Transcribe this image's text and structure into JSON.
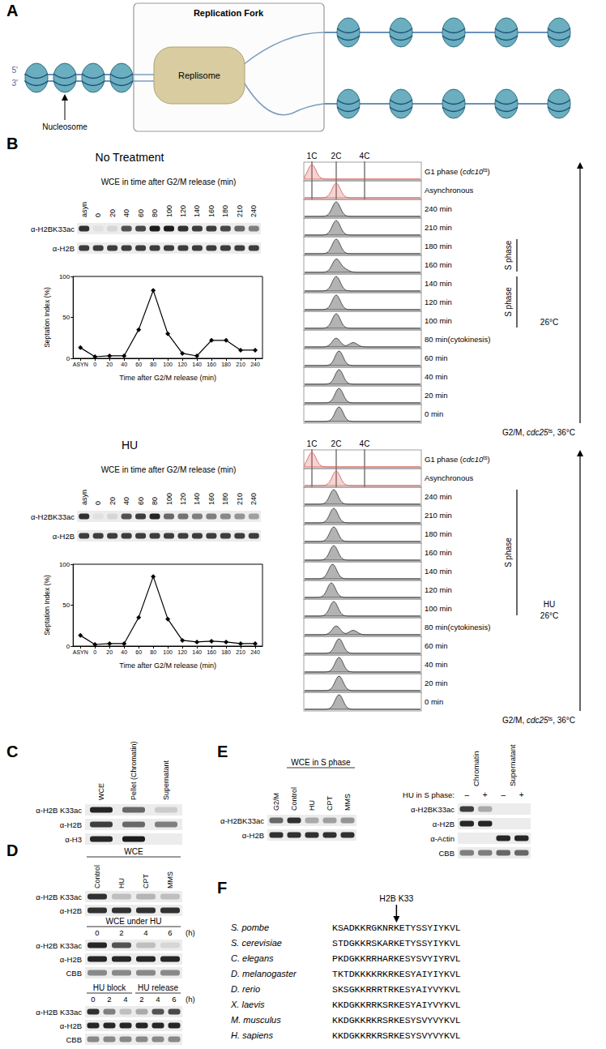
{
  "chart_data": [
    {
      "type": "line",
      "x_label": "Time after G2/M release (min)",
      "y_label": "Septation Index (%)",
      "categories": [
        "ASYN",
        "0",
        "20",
        "40",
        "60",
        "80",
        "100",
        "120",
        "140",
        "160",
        "180",
        "210",
        "240"
      ],
      "values": [
        13,
        2,
        3,
        3,
        35,
        83,
        30,
        6,
        3,
        22,
        22,
        10,
        10
      ],
      "ylim": [
        0,
        100
      ],
      "yticks": [
        0,
        50,
        100
      ],
      "color": "#000000",
      "marker": "diamond",
      "grid": false
    },
    {
      "type": "line",
      "x_label": "Time after G2/M release (min)",
      "y_label": "Septation Index (%)",
      "categories": [
        "ASYN",
        "0",
        "20",
        "40",
        "60",
        "80",
        "100",
        "120",
        "140",
        "160",
        "180",
        "210",
        "240"
      ],
      "values": [
        13,
        2,
        3,
        3,
        35,
        85,
        33,
        7,
        5,
        6,
        5,
        3,
        3
      ],
      "ylim": [
        0,
        100
      ],
      "yticks": [
        0,
        50,
        100
      ],
      "color": "#000000",
      "marker": "diamond",
      "grid": false
    }
  ],
  "figure": {
    "A": {
      "label": "A",
      "box_title": "Replication Fork",
      "machine": "Replisome",
      "end_labels": [
        "5'",
        "3'"
      ],
      "pointer": "Nucleosome"
    },
    "B": {
      "label": "B",
      "sections": [
        {
          "title": "No Treatment",
          "blot_title": "WCE in time after G2/M release (min)",
          "lanes": [
            "asyn",
            "0",
            "20",
            "40",
            "60",
            "80",
            "100",
            "120",
            "140",
            "160",
            "180",
            "210",
            "240"
          ],
          "rows": [
            {
              "name": "α-H2BK33ac",
              "intensity": [
                0.85,
                0.05,
                0.1,
                0.7,
                0.75,
                0.95,
                0.95,
                0.85,
                0.8,
                0.8,
                0.75,
                0.6,
                0.5
              ]
            },
            {
              "name": "α-H2B",
              "intensity": [
                0.8,
                0.8,
                0.8,
                0.8,
                0.8,
                0.8,
                0.8,
                0.8,
                0.8,
                0.8,
                0.8,
                0.8,
                0.8
              ]
            }
          ],
          "flow_header": [
            {
              "value": 1,
              "label": "1C"
            },
            {
              "value": 2,
              "label": "2C"
            },
            {
              "value": 4,
              "label": "4C"
            }
          ],
          "flow_rows": [
            {
              "label": [
                "G1 phase (",
                {
                  "i": "cdc10"
                },
                {
                  "sup": "ts"
                },
                ")"
              ],
              "color": "#d9534f",
              "peaks": [
                [
                  1,
                  1
                ]
              ]
            },
            {
              "label": [
                "Asynchronous"
              ],
              "color": "#d9534f",
              "peaks": [
                [
                  2,
                  1
                ]
              ]
            },
            {
              "label": [
                "240 min"
              ],
              "color": "#9a9a9a",
              "peaks": [
                [
                  2,
                  1
                ]
              ]
            },
            {
              "label": [
                "210 min"
              ],
              "color": "#9a9a9a",
              "peaks": [
                [
                  2,
                  1
                ]
              ]
            },
            {
              "label": [
                "180 min"
              ],
              "color": "#9a9a9a",
              "peaks": [
                [
                  2,
                  1
                ]
              ]
            },
            {
              "label": [
                "160 min"
              ],
              "color": "#9a9a9a",
              "peaks": [
                [
                  2,
                  0.9
                ],
                [
                  2.6,
                  0.2
                ]
              ]
            },
            {
              "label": [
                "140 min"
              ],
              "color": "#9a9a9a",
              "peaks": [
                [
                  2,
                  1
                ]
              ]
            },
            {
              "label": [
                "120 min"
              ],
              "color": "#9a9a9a",
              "peaks": [
                [
                  2,
                  1
                ]
              ]
            },
            {
              "label": [
                "100 min"
              ],
              "color": "#9a9a9a",
              "peaks": [
                [
                  2,
                  1
                ]
              ]
            },
            {
              "label": [
                "80 min(cytokinesis)"
              ],
              "color": "#9a9a9a",
              "peaks": [
                [
                  2,
                  0.6
                ],
                [
                  3.2,
                  0.3
                ]
              ]
            },
            {
              "label": [
                "60 min"
              ],
              "color": "#9a9a9a",
              "peaks": [
                [
                  2.2,
                  1
                ]
              ]
            },
            {
              "label": [
                "40 min"
              ],
              "color": "#9a9a9a",
              "peaks": [
                [
                  2.2,
                  1
                ]
              ]
            },
            {
              "label": [
                "20 min"
              ],
              "color": "#9a9a9a",
              "peaks": [
                [
                  2.2,
                  1
                ]
              ]
            },
            {
              "label": [
                "0 min"
              ],
              "color": "#9a9a9a",
              "peaks": [
                [
                  2.2,
                  1
                ]
              ]
            }
          ],
          "s_phase": [
            {
              "text": "S phase",
              "rows": [
                4,
                5
              ]
            },
            {
              "text": "S phase",
              "rows": [
                6,
                8
              ]
            }
          ],
          "conditions": [
            "26°C"
          ],
          "start": [
            "G2/M, ",
            {
              "i": "cdc25"
            },
            {
              "sup": "ts"
            },
            ", 36°C"
          ]
        },
        {
          "title": "HU",
          "blot_title": "WCE in time after G2/M release (min)",
          "lanes": [
            "asyn",
            "0",
            "20",
            "40",
            "60",
            "80",
            "100",
            "120",
            "140",
            "160",
            "180",
            "210",
            "240"
          ],
          "rows": [
            {
              "name": "α-H2BK33ac",
              "intensity": [
                0.85,
                0.05,
                0.1,
                0.7,
                0.8,
                0.9,
                0.6,
                0.55,
                0.5,
                0.5,
                0.45,
                0.4,
                0.35
              ]
            },
            {
              "name": "α-H2B",
              "intensity": [
                0.8,
                0.8,
                0.8,
                0.8,
                0.8,
                0.8,
                0.8,
                0.8,
                0.8,
                0.8,
                0.8,
                0.8,
                0.8
              ]
            }
          ],
          "flow_header": [
            {
              "value": 1,
              "label": "1C"
            },
            {
              "value": 2,
              "label": "2C"
            },
            {
              "value": 4,
              "label": "4C"
            }
          ],
          "flow_rows": [
            {
              "label": [
                "G1 phase (",
                {
                  "i": "cdc10"
                },
                {
                  "sup": "ts"
                },
                ")"
              ],
              "color": "#d9534f",
              "peaks": [
                [
                  1,
                  1
                ]
              ]
            },
            {
              "label": [
                "Asynchronous"
              ],
              "color": "#d9534f",
              "peaks": [
                [
                  2,
                  1
                ]
              ]
            },
            {
              "label": [
                "240 min"
              ],
              "color": "#9a9a9a",
              "peaks": [
                [
                  1.9,
                  1
                ]
              ]
            },
            {
              "label": [
                "210 min"
              ],
              "color": "#9a9a9a",
              "peaks": [
                [
                  1.9,
                  1
                ]
              ]
            },
            {
              "label": [
                "180 min"
              ],
              "color": "#9a9a9a",
              "peaks": [
                [
                  1.9,
                  1
                ]
              ]
            },
            {
              "label": [
                "160 min"
              ],
              "color": "#9a9a9a",
              "peaks": [
                [
                  1.9,
                  1
                ]
              ]
            },
            {
              "label": [
                "140 min"
              ],
              "color": "#9a9a9a",
              "peaks": [
                [
                  1.85,
                  1
                ]
              ]
            },
            {
              "label": [
                "120 min"
              ],
              "color": "#9a9a9a",
              "peaks": [
                [
                  1.8,
                  1
                ]
              ]
            },
            {
              "label": [
                "100 min"
              ],
              "color": "#9a9a9a",
              "peaks": [
                [
                  1.9,
                  1
                ]
              ]
            },
            {
              "label": [
                "80 min(cytokinesis)"
              ],
              "color": "#9a9a9a",
              "peaks": [
                [
                  2,
                  0.6
                ],
                [
                  3.2,
                  0.3
                ]
              ]
            },
            {
              "label": [
                "60 min"
              ],
              "color": "#9a9a9a",
              "peaks": [
                [
                  2.2,
                  1
                ]
              ]
            },
            {
              "label": [
                "40 min"
              ],
              "color": "#9a9a9a",
              "peaks": [
                [
                  2.2,
                  1
                ]
              ]
            },
            {
              "label": [
                "20 min"
              ],
              "color": "#9a9a9a",
              "peaks": [
                [
                  2.2,
                  1
                ]
              ]
            },
            {
              "label": [
                "0 min"
              ],
              "color": "#9a9a9a",
              "peaks": [
                [
                  2.2,
                  1
                ]
              ]
            }
          ],
          "s_phase": [
            {
              "text": "S phase",
              "rows": [
                2,
                8
              ]
            }
          ],
          "conditions": [
            "HU",
            "26°C"
          ],
          "start": [
            "G2/M, ",
            {
              "i": "cdc25"
            },
            {
              "sup": "ts"
            },
            ", 36°C"
          ]
        }
      ]
    },
    "C": {
      "label": "C",
      "columns": [
        "WCE",
        "Pellet (Chromatin)",
        "Supernatant"
      ],
      "rows": [
        {
          "name": "α-H2B K33ac",
          "intensity": [
            0.9,
            0.6,
            0.15
          ]
        },
        {
          "name": "α-H2B",
          "intensity": [
            0.8,
            0.6,
            0.5
          ]
        },
        {
          "name": "α-H3",
          "intensity": [
            0.9,
            0.95,
            0.0
          ]
        }
      ]
    },
    "D": {
      "label": "D",
      "blots": [
        {
          "header": [
            {
              "text": "WCE",
              "first": 1,
              "last": 4
            }
          ],
          "lanes": [
            "Control",
            "HU",
            "CPT",
            "MMS"
          ],
          "rows": [
            {
              "name": "α-H2B K33ac",
              "intensity": [
                0.85,
                0.2,
                0.25,
                0.2
              ]
            },
            {
              "name": "α-H2B",
              "intensity": [
                0.85,
                0.85,
                0.85,
                0.85
              ]
            }
          ]
        },
        {
          "header": [
            {
              "text": "WCE under HU",
              "first": 1,
              "last": 4
            }
          ],
          "lanes": [
            "0",
            "2",
            "4",
            "6"
          ],
          "unit": "(h)",
          "rows": [
            {
              "name": "α-H2B K33ac",
              "intensity": [
                0.9,
                0.7,
                0.2,
                0.1
              ]
            },
            {
              "name": "α-H2B",
              "intensity": [
                0.9,
                0.9,
                0.9,
                0.9
              ]
            },
            {
              "name": "CBB",
              "intensity": [
                0.45,
                0.45,
                0.45,
                0.45
              ]
            }
          ]
        },
        {
          "header": [
            {
              "text": "HU block",
              "first": 1,
              "last": 3
            },
            {
              "text": "HU release",
              "first": 4,
              "last": 6
            }
          ],
          "lanes": [
            "0",
            "2",
            "4",
            "2",
            "4",
            "6"
          ],
          "unit": "(h)",
          "rows": [
            {
              "name": "α-H2B K33ac",
              "intensity": [
                0.85,
                0.5,
                0.2,
                0.3,
                0.7,
                0.75
              ]
            },
            {
              "name": "α-H2B",
              "intensity": [
                0.9,
                0.9,
                0.9,
                0.9,
                0.9,
                0.9
              ]
            },
            {
              "name": "CBB",
              "intensity": [
                0.45,
                0.45,
                0.45,
                0.45,
                0.45,
                0.45
              ]
            }
          ]
        }
      ]
    },
    "E": {
      "label": "E",
      "left": {
        "header": [
          {
            "text": "WCE in S phase",
            "first": 2,
            "last": 5
          }
        ],
        "lanes": [
          "G2/M",
          "Control",
          "HU",
          "CPT",
          "MMS"
        ],
        "rows": [
          {
            "name": "α-H2BK33ac",
            "intensity": [
              0.6,
              0.85,
              0.3,
              0.35,
              0.4
            ]
          },
          {
            "name": "α-H2B",
            "intensity": [
              0.85,
              0.85,
              0.85,
              0.85,
              0.85
            ]
          }
        ]
      },
      "right": {
        "condition": "HU in S phase:",
        "groups": [
          {
            "text": "Chromatin",
            "first": 1,
            "last": 2
          },
          {
            "text": "Supernatant",
            "first": 3,
            "last": 4
          }
        ],
        "lanes": [
          "–",
          "+",
          "–",
          "+"
        ],
        "rows": [
          {
            "name": "α-H2BK33ac",
            "intensity": [
              0.8,
              0.3,
              0.0,
              0.0
            ]
          },
          {
            "name": "α-H2B",
            "intensity": [
              0.9,
              0.9,
              0.0,
              0.0
            ]
          },
          {
            "name": "α-Actin",
            "intensity": [
              0.0,
              0.0,
              0.9,
              0.9
            ]
          },
          {
            "name": "CBB",
            "intensity": [
              0.5,
              0.5,
              0.6,
              0.6
            ]
          }
        ]
      }
    },
    "F": {
      "label": "F",
      "marker_text": "H2B K33",
      "marker_position": 12,
      "alignment": [
        {
          "species": "S. pombe",
          "sequence": "KSADKKRGKNRKETYSSYIYKVL"
        },
        {
          "species": "S. cerevisiae",
          "sequence": "STDGKKRSKARKETYSSYIYKVL"
        },
        {
          "species": "C. elegans",
          "sequence": "PKDGKKRRHARKESYSVYIYRVL"
        },
        {
          "species": "D. melanogaster",
          "sequence": "TKTDKKKKRKRKESYAIYIYKVL"
        },
        {
          "species": "D. rerio",
          "sequence": "SKSGKKRRRTRKESYAIYVYKVL"
        },
        {
          "species": "X. laevis",
          "sequence": "KKDGKKRRKSRKESYAIYVYKVL"
        },
        {
          "species": "M. musculus",
          "sequence": "KKDGKKRKRSRKESYSVYVYKVL"
        },
        {
          "species": "H. sapiens",
          "sequence": "KKDGKKRKRSRKESYSVYVYKVL"
        }
      ]
    }
  }
}
